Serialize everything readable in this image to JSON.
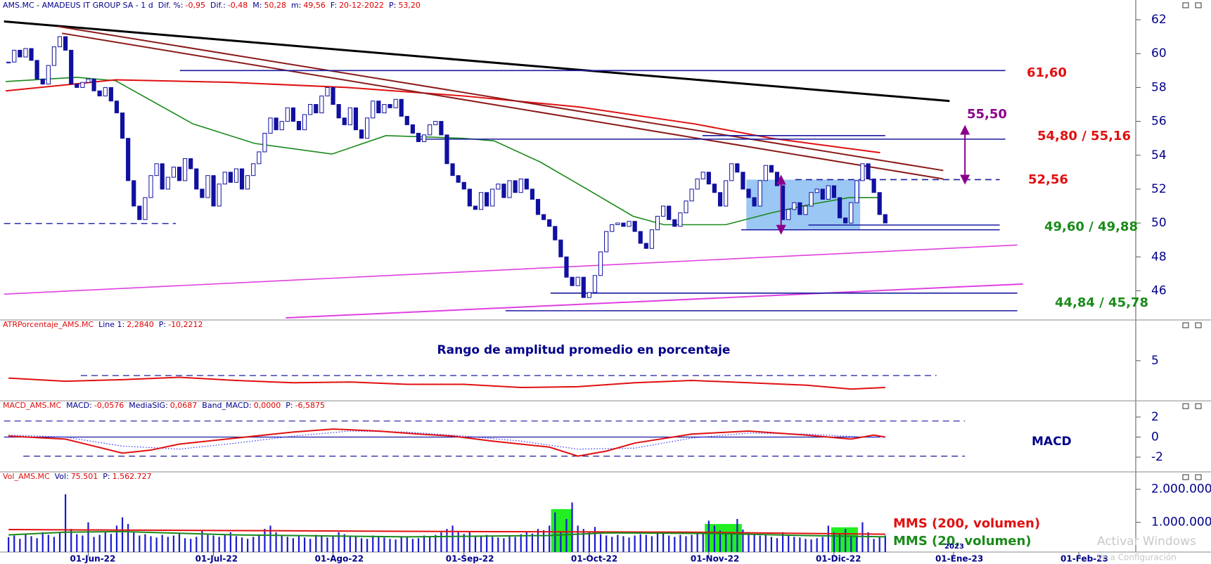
{
  "chart_data": [
    {
      "type": "candlestick",
      "name": "AMS.MC - AMADEUS IT GROUP SA -  1 d",
      "name_color": "#00008b",
      "fields": [
        {
          "label": "Dif. %:",
          "value": "-0,95"
        },
        {
          "label": "Dif.:",
          "value": "-0,48"
        },
        {
          "label": "M:",
          "value": "50,28"
        },
        {
          "label": "m:",
          "value": "49,56"
        },
        {
          "label": "F:",
          "value": "20-12-2022"
        },
        {
          "label": "P:",
          "value": "53,20"
        }
      ],
      "color": "#1010a0",
      "values": [
        59.5,
        60.2,
        59.8,
        60.3,
        59.6,
        58.5,
        58.2,
        59.3,
        60.4,
        61.0,
        60.2,
        58.2,
        58.0,
        58.3,
        58.5,
        57.8,
        57.5,
        58.0,
        57.2,
        56.5,
        55.0,
        52.5,
        51.0,
        50.2,
        51.5,
        52.8,
        53.5,
        52.0,
        52.7,
        53.3,
        52.5,
        53.8,
        53.2,
        52.0,
        51.5,
        52.8,
        51.0,
        52.3,
        53.0,
        52.4,
        53.2,
        52.0,
        52.8,
        53.5,
        54.2,
        55.3,
        56.2,
        55.5,
        56.0,
        56.8,
        56.0,
        55.5,
        56.4,
        57.0,
        56.5,
        57.5,
        58.0,
        57.0,
        56.2,
        55.8,
        56.8,
        55.5,
        55.0,
        56.2,
        57.2,
        56.5,
        57.0,
        56.8,
        57.3,
        56.3,
        55.8,
        55.3,
        54.8,
        55.2,
        55.8,
        56.0,
        55.2,
        53.5,
        52.8,
        52.4,
        52.0,
        51.0,
        50.8,
        51.8,
        51.0,
        52.0,
        52.3,
        51.5,
        52.5,
        51.8,
        52.6,
        52.0,
        51.4,
        50.5,
        50.2,
        49.8,
        49.0,
        48.0,
        46.8,
        46.3,
        46.8,
        45.6,
        45.9,
        46.9,
        48.3,
        49.5,
        49.9,
        50.0,
        49.8,
        50.1,
        49.5,
        48.8,
        48.5,
        49.6,
        50.4,
        51.0,
        50.2,
        49.8,
        50.6,
        51.3,
        52.0,
        52.6,
        53.0,
        52.3,
        51.8,
        51.0,
        52.5,
        53.5,
        53.0,
        52.0,
        51.5,
        51.0,
        52.5,
        53.4,
        53.0,
        52.2,
        50.2,
        50.8,
        51.2,
        50.5,
        51.0,
        51.8,
        52.0,
        51.4,
        52.2,
        51.5,
        50.3,
        50.0,
        51.2,
        52.5,
        53.5,
        52.6,
        51.8,
        50.5,
        50.0
      ],
      "xlim": [
        -1.5,
        198
      ],
      "ylim": [
        44.4,
        62.5
      ],
      "yticks": [
        46,
        48,
        50,
        52,
        54,
        56,
        58,
        60,
        62
      ],
      "zone": {
        "color": "#7ab4f0",
        "x": [
          129.6,
          149.6
        ],
        "values": [
          49.6,
          52.56
        ]
      },
      "series": [
        {
          "color": "#1a8a1a",
          "width": 1.6,
          "x": [
            -0.5,
            12,
            18.8,
            32.4,
            43.2,
            56.8,
            66.3,
            79.9,
            85.3,
            93.4,
            101.6,
            109.7,
            115.1,
            126,
            134,
            140.9,
            147.7,
            153.1
          ],
          "values": [
            58.35,
            58.6,
            58.4,
            55.85,
            54.7,
            54.07,
            55.16,
            55.0,
            54.85,
            53.6,
            52.0,
            50.4,
            49.9,
            49.9,
            50.6,
            51.1,
            51.5,
            51.5
          ]
        },
        {
          "color": "#e01010",
          "width": 2,
          "x": [
            -0.5,
            18.8,
            39.2,
            59.5,
            79.9,
            100.2,
            120.5,
            134,
            153.1
          ],
          "values": [
            57.8,
            58.45,
            58.3,
            58.0,
            57.5,
            56.85,
            55.85,
            55.0,
            54.15
          ]
        },
        {
          "color": "#000000",
          "width": 3,
          "x": [
            -0.8,
            165.3
          ],
          "values": [
            61.9,
            57.2
          ]
        },
        {
          "color": "#8b1a1a",
          "width": 2,
          "x": [
            8.7,
            164.2
          ],
          "values": [
            61.6,
            53.1
          ]
        },
        {
          "color": "#8b1a1a",
          "width": 2,
          "x": [
            9.4,
            164.2
          ],
          "values": [
            61.2,
            52.6
          ]
        },
        {
          "color": "#e040e0",
          "width": 1.6,
          "x": [
            -0.8,
            177.2
          ],
          "values": [
            45.8,
            48.7
          ]
        },
        {
          "color": "#e040e0",
          "width": 2,
          "x": [
            48.7,
            178.2
          ],
          "values": [
            44.4,
            46.4
          ]
        },
        {
          "color": "#1a1aa0",
          "width": 1.6,
          "x": [
            30.1,
            175.1
          ],
          "values": [
            59.0,
            59.0
          ]
        },
        {
          "color": "#1a1aa0",
          "width": 1.6,
          "x": [
            121.9,
            154
          ],
          "values": [
            55.16,
            55.16
          ]
        },
        {
          "color": "#1a1aa0",
          "width": 1.6,
          "x": [
            72.1,
            175.1
          ],
          "values": [
            54.95,
            54.95
          ]
        },
        {
          "color": "#1a1aa0",
          "width": 1.6,
          "dash": "dashed",
          "x": [
            138.2,
            174.1
          ],
          "values": [
            52.56,
            52.56
          ]
        },
        {
          "color": "#1a1aa0",
          "width": 1.6,
          "x": [
            140.5,
            174.1
          ],
          "values": [
            49.88,
            49.88
          ]
        },
        {
          "color": "#1a1aa0",
          "width": 1.6,
          "x": [
            128.7,
            174.1
          ],
          "values": [
            49.6,
            49.6
          ]
        },
        {
          "color": "#1a1aa0",
          "width": 1.3,
          "dash": "dashed",
          "x": [
            -0.8,
            29.4
          ],
          "values": [
            49.97,
            49.97
          ]
        },
        {
          "color": "#1a1aa0",
          "width": 1.6,
          "x": [
            95.2,
            177.2
          ],
          "values": [
            45.86,
            45.86
          ]
        },
        {
          "color": "#1a1aa0",
          "width": 1.6,
          "x": [
            87.3,
            177.2
          ],
          "values": [
            44.82,
            44.82
          ]
        }
      ],
      "arrows": [
        {
          "color": "#8b008b",
          "x": 135.7,
          "values": [
            49.6,
            52.56
          ]
        },
        {
          "color": "#8b008b",
          "x": 168,
          "values": [
            52.56,
            55.5
          ]
        }
      ],
      "annotations": [
        {
          "text": "61,60",
          "color": "#e01010"
        },
        {
          "text": "55,50",
          "color": "#8b008b"
        },
        {
          "text": "54,80 / 55,16",
          "color": "#e01010"
        },
        {
          "text": "52,56",
          "color": "#e01010"
        },
        {
          "text": "49,60 / 49,88",
          "color": "#1a8a1a"
        },
        {
          "text": "44,84 / 45,78",
          "color": "#1a8a1a"
        }
      ]
    },
    {
      "type": "line",
      "name": "ATRPorcentaje_AMS.MC",
      "name_color": "#e01010",
      "fields": [
        {
          "label": "Line 1:",
          "value": "2,2840"
        },
        {
          "label": "P:",
          "value": "-10,2212"
        }
      ],
      "xlim": [
        -1.5,
        198
      ],
      "ylim": [
        2.5,
        7
      ],
      "yticks": [
        5
      ],
      "series": [
        {
          "color": "#1a1aa0",
          "width": 1.2,
          "dash": "dashed",
          "x": [
            12.7,
            163
          ],
          "values": [
            4.06,
            4.06
          ]
        },
        {
          "color": "#e01010",
          "width": 2,
          "x": [
            0,
            10,
            20,
            30,
            40,
            50,
            60,
            70,
            80,
            90,
            100,
            110,
            120,
            130,
            140,
            148,
            154
          ],
          "values": [
            3.9,
            3.7,
            3.8,
            3.95,
            3.75,
            3.6,
            3.65,
            3.5,
            3.5,
            3.3,
            3.35,
            3.6,
            3.75,
            3.6,
            3.45,
            3.2,
            3.3
          ]
        }
      ],
      "annotations": [
        {
          "text": "Rango de amplitud promedio en porcentaje",
          "color": "#00008b"
        }
      ]
    },
    {
      "type": "line",
      "name": "MACD_AMS.MC",
      "name_color": "#e01010",
      "fields": [
        {
          "label": "MACD:",
          "value": "-0,0576"
        },
        {
          "label": "MediaSIG:",
          "value": "0,0687"
        },
        {
          "label": "Band_MACD:",
          "value": "0,0000"
        },
        {
          "label": "P:",
          "value": "-6,5875"
        }
      ],
      "xlim": [
        -1.5,
        198
      ],
      "ylim": [
        -3.4,
        2.7
      ],
      "yticks": [
        2,
        0,
        -2
      ],
      "series": [
        {
          "color": "#1a1aa0",
          "width": 1.2,
          "dash": "dashed",
          "x": [
            -0.8,
            168
          ],
          "values": [
            1.6,
            1.6
          ]
        },
        {
          "color": "#1a1aa0",
          "width": 1.2,
          "dash": "dashed",
          "x": [
            2.6,
            168
          ],
          "values": [
            -1.9,
            -1.9
          ]
        },
        {
          "color": "#1a1aa0",
          "width": 1.2,
          "x": [
            -0.8,
            153
          ],
          "values": [
            0,
            0
          ]
        },
        {
          "color": "#3030ff",
          "width": 1.2,
          "dash": "dotted",
          "x": [
            0,
            10,
            20,
            30,
            40,
            50,
            60,
            70,
            80,
            90,
            100,
            110,
            120,
            130,
            140,
            150,
            154
          ],
          "values": [
            0.2,
            0.0,
            -0.9,
            -1.2,
            -0.6,
            0.1,
            0.6,
            0.5,
            0.1,
            -0.4,
            -1.2,
            -1.1,
            -0.1,
            0.4,
            0.3,
            0.0,
            0.0
          ]
        },
        {
          "color": "#e01010",
          "width": 2,
          "x": [
            0,
            10,
            20,
            25,
            30,
            40,
            50,
            57,
            65,
            72,
            78,
            85,
            95,
            100,
            105,
            110,
            120,
            130,
            140,
            148,
            152,
            154
          ],
          "values": [
            0.1,
            -0.2,
            -1.6,
            -1.3,
            -0.7,
            -0.1,
            0.5,
            0.8,
            0.6,
            0.3,
            0.1,
            -0.4,
            -1.0,
            -1.9,
            -1.4,
            -0.6,
            0.3,
            0.6,
            0.2,
            -0.2,
            0.2,
            0.0
          ]
        }
      ],
      "annotations": [
        {
          "text": "MACD",
          "color": "#00008b"
        }
      ]
    },
    {
      "type": "bar",
      "name": "Vol_AMS.MC",
      "name_color": "#e01010",
      "fields": [
        {
          "label": "Vol:",
          "value": "75.501"
        },
        {
          "label": "P:",
          "value": "1.562.727"
        }
      ],
      "color": "#1a1ad0",
      "values": [
        550000,
        600000,
        500000,
        650000,
        580000,
        520000,
        700000,
        620000,
        560000,
        690000,
        1850000,
        800000,
        640000,
        600000,
        1000000,
        560000,
        620000,
        700000,
        650000,
        900000,
        1150000,
        950000,
        700000,
        600000,
        640000,
        580000,
        540000,
        620000,
        560000,
        600000,
        680000,
        520000,
        500000,
        560000,
        740000,
        620000,
        600000,
        560000,
        620000,
        700000,
        580000,
        540000,
        500000,
        560000,
        620000,
        800000,
        900000,
        700000,
        620000,
        560000,
        520000,
        600000,
        540000,
        500000,
        620000,
        580000,
        540000,
        600000,
        700000,
        640000,
        580000,
        560000,
        520000,
        500000,
        600000,
        560000,
        540000,
        500000,
        480000,
        560000,
        540000,
        500000,
        520000,
        600000,
        560000,
        620000,
        700000,
        800000,
        900000,
        700000,
        650000,
        700000,
        600000,
        580000,
        620000,
        560000,
        540000,
        520000,
        600000,
        560000,
        640000,
        700000,
        660000,
        800000,
        760000,
        900000,
        1300000,
        700000,
        1100000,
        1600000,
        900000,
        800000,
        700000,
        860000,
        640000,
        600000,
        560000,
        620000,
        580000,
        540000,
        600000,
        640000,
        620000,
        580000,
        700000,
        660000,
        600000,
        560000,
        620000,
        580000,
        620000,
        660000,
        700000,
        1050000,
        900000,
        750000,
        700000,
        650000,
        1100000,
        780000,
        700000,
        640000,
        600000,
        620000,
        560000,
        520000,
        700000,
        620000,
        560000,
        540000,
        500000,
        480000,
        520000,
        560000,
        900000,
        700000,
        640000,
        800000,
        600000,
        560000,
        1000000,
        700000,
        500000,
        560000,
        600000
      ],
      "xlim": [
        -1.5,
        198
      ],
      "ylim": [
        100000,
        2250000
      ],
      "yticks": [
        {
          "value": 2000000,
          "label": "2.000.000"
        },
        {
          "value": 1000000,
          "label": "1.000.000"
        }
      ],
      "xticks": [
        {
          "value": 14,
          "label": "01-Jun-22"
        },
        {
          "value": 36,
          "label": "01-Jul-22"
        },
        {
          "value": 57,
          "label": "01-Ago-22"
        },
        {
          "value": 80,
          "label": "01-Sep-22"
        },
        {
          "value": 102,
          "label": "01-Oct-22"
        },
        {
          "value": 123,
          "label": "01-Nov-22"
        },
        {
          "value": 145,
          "label": "01-Dic-22"
        },
        {
          "value": 166,
          "label": "01-Ene-23"
        },
        {
          "value": 188,
          "label": "01-Feb-23"
        }
      ],
      "highlights": [
        {
          "color": "#22ee22",
          "x": [
            95.3,
            99.1
          ],
          "value": 1400000
        },
        {
          "color": "#22ee22",
          "x": [
            122.3,
            128.8
          ],
          "value": 950000
        },
        {
          "color": "#22ee22",
          "x": [
            144.5,
            149.2
          ],
          "value": 850000
        }
      ],
      "series": [
        {
          "name": "MMS (200, volumen)",
          "color": "#e01010",
          "width": 2,
          "x": [
            0,
            40,
            80,
            120,
            154
          ],
          "values": [
            780000,
            750000,
            720000,
            700000,
            640000
          ]
        },
        {
          "name": "MMS (20, volumen)",
          "color": "#1a8a1a",
          "width": 2,
          "x": [
            0,
            10,
            20,
            40,
            70,
            95,
            105,
            125,
            140,
            154
          ],
          "values": [
            620000,
            700000,
            720000,
            620000,
            560000,
            600000,
            680000,
            660000,
            600000,
            560000
          ]
        }
      ],
      "annotations": [
        {
          "text": "2023",
          "color": "#00008b"
        }
      ]
    }
  ],
  "watermark": [
    "Activar Windows",
    "Ve a Configuración"
  ]
}
